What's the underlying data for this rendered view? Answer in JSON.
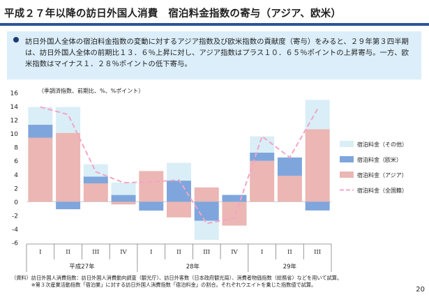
{
  "title": "平成２７年以降の訪日外国人消費　宿泊料金指数の寄与（アジア、欧米）",
  "summary": "訪日外国人全体の宿泊料金指数の変動に対するアジア指数及び欧米指数の貢献度（寄与）をみると、２９年第３四半期は、訪日外国人全体の前期比１３．６％上昇に対し、アジア指数はプラス１０．６５％ポイントの上昇寄与。一方、欧米指数はマイナス１．２８％ポイントの低下寄与。",
  "unit_note": "（季調済指数、前期比、%、%ポイント）",
  "source_lines": [
    "（資料）訪日外国人消費指数：訪日外国人消費動向調査（観光庁）、訪日外客数（日本政府観光局）、消費者物価指数（総務省）などを用いて試算。",
    "　　　　※第３次産業活動指数「宿泊業」に対する訪日外国人消費指数「宿泊料金」の割合。それぞれウエイトを乗じた指数値で試算。"
  ],
  "page_number": "20",
  "colors": {
    "other": "#d9eef6",
    "western": "#7ea6dd",
    "asia": "#ebb6b3",
    "total": "#f4a4c8",
    "title_rule": "#2e5597",
    "summary_bg": "#dbeefa"
  },
  "chart_data": {
    "type": "bar",
    "stacked": true,
    "ylim": [
      -6,
      16
    ],
    "yticks": [
      -6,
      -4,
      -2,
      0,
      2,
      4,
      6,
      8,
      10,
      12,
      14,
      16
    ],
    "categories": [
      "I",
      "II",
      "III",
      "IV",
      "I",
      "II",
      "III",
      "IV",
      "I",
      "II",
      "III"
    ],
    "year_groups": [
      {
        "label": "平成27年",
        "count": 4
      },
      {
        "label": "28年",
        "count": 4
      },
      {
        "label": "29年",
        "count": 3
      }
    ],
    "legend_position": "right",
    "series": [
      {
        "name": "宿泊料金（アジア）",
        "kind": "bar",
        "key": "asia",
        "values": [
          9.4,
          10.1,
          2.7,
          -0.4,
          4.5,
          -2.3,
          2.1,
          -3.5,
          6.0,
          3.8,
          10.65
        ]
      },
      {
        "name": "宿泊料金（欧米）",
        "kind": "bar",
        "key": "western",
        "values": [
          1.9,
          -1.1,
          1.0,
          1.0,
          -1.3,
          3.1,
          -2.8,
          1.0,
          1.2,
          2.7,
          -1.28
        ]
      },
      {
        "name": "宿泊料金（その他）",
        "kind": "bar",
        "key": "other",
        "values": [
          2.6,
          3.8,
          1.8,
          1.8,
          0.0,
          2.6,
          -2.8,
          0.0,
          2.4,
          0.0,
          4.3
        ]
      },
      {
        "name": "宿泊料金（全国籍）",
        "kind": "line",
        "key": "total",
        "values": [
          13.9,
          12.8,
          4.4,
          2.8,
          2.9,
          3.2,
          -3.2,
          -2.4,
          9.6,
          6.5,
          13.6
        ]
      }
    ],
    "legend_order": [
      "other",
      "western",
      "asia",
      "total"
    ]
  }
}
